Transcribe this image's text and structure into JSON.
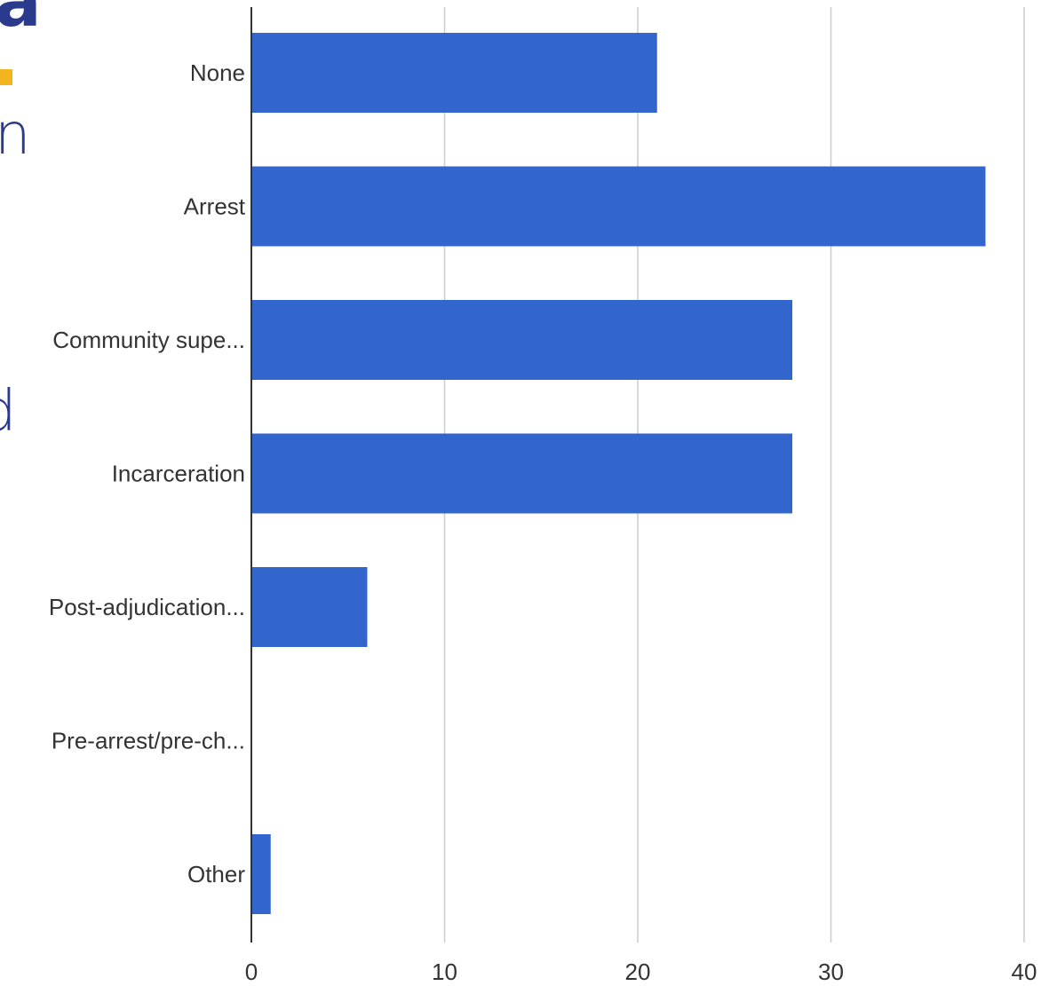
{
  "background_fragments": {
    "top": "a",
    "middle_1": "n",
    "middle_2": "d"
  },
  "colors": {
    "bar": "#3366cc",
    "gridline": "#cccccc",
    "axis": "#333333",
    "text": "#333333",
    "accent": "#f2b520",
    "fragment_text": "#2a3a8c"
  },
  "chart_data": {
    "type": "bar",
    "orientation": "horizontal",
    "categories": [
      "None",
      "Arrest",
      "Community supe...",
      "Incarceration",
      "Post-adjudication...",
      "Pre-arrest/pre-ch...",
      "Other"
    ],
    "values": [
      21,
      38,
      28,
      28,
      6,
      0,
      1
    ],
    "x_ticks": [
      "0",
      "10",
      "20",
      "30",
      "40"
    ],
    "xlim": [
      0,
      40
    ],
    "grid": true,
    "legend": "none",
    "title": "",
    "xlabel": "",
    "ylabel": ""
  }
}
